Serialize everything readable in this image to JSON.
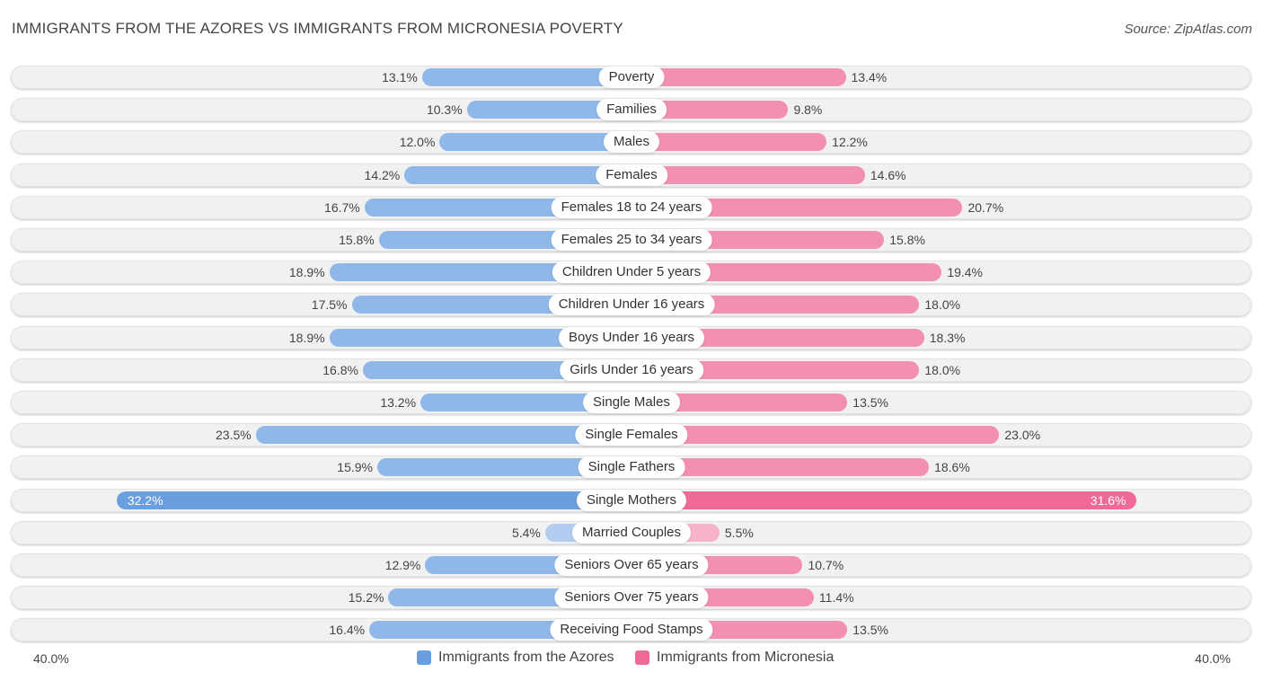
{
  "header": {
    "title": "IMMIGRANTS FROM THE AZORES VS IMMIGRANTS FROM MICRONESIA POVERTY",
    "source": "Source: ZipAtlas.com"
  },
  "axis": {
    "left_label": "40.0%",
    "right_label": "40.0%"
  },
  "legend": {
    "left": {
      "label": "Immigrants from the Azores",
      "color": "#6a9fdf"
    },
    "right": {
      "label": "Immigrants from Micronesia",
      "color": "#ef6b96"
    }
  },
  "chart_data": {
    "type": "bar",
    "orientation": "horizontal-diverging",
    "title": "IMMIGRANTS FROM THE AZORES VS IMMIGRANTS FROM MICRONESIA POVERTY",
    "xlim": [
      0,
      40
    ],
    "unit": "%",
    "categories": [
      "Poverty",
      "Families",
      "Males",
      "Females",
      "Females 18 to 24 years",
      "Females 25 to 34 years",
      "Children Under 5 years",
      "Children Under 16 years",
      "Boys Under 16 years",
      "Girls Under 16 years",
      "Single Males",
      "Single Females",
      "Single Fathers",
      "Single Mothers",
      "Married Couples",
      "Seniors Over 65 years",
      "Seniors Over 75 years",
      "Receiving Food Stamps"
    ],
    "series": [
      {
        "name": "Immigrants from the Azores",
        "color": "#6a9fdf",
        "values": [
          13.1,
          10.3,
          12.0,
          14.2,
          16.7,
          15.8,
          18.9,
          17.5,
          18.9,
          16.8,
          13.2,
          23.5,
          15.9,
          32.2,
          5.4,
          12.9,
          15.2,
          16.4
        ],
        "labels": [
          "13.1%",
          "10.3%",
          "12.0%",
          "14.2%",
          "16.7%",
          "15.8%",
          "18.9%",
          "17.5%",
          "18.9%",
          "16.8%",
          "13.2%",
          "23.5%",
          "15.9%",
          "32.2%",
          "5.4%",
          "12.9%",
          "15.2%",
          "16.4%"
        ]
      },
      {
        "name": "Immigrants from Micronesia",
        "color": "#ef6b96",
        "values": [
          13.4,
          9.8,
          12.2,
          14.6,
          20.7,
          15.8,
          19.4,
          18.0,
          18.3,
          18.0,
          13.5,
          23.0,
          18.6,
          31.6,
          5.5,
          10.7,
          11.4,
          13.5
        ],
        "labels": [
          "13.4%",
          "9.8%",
          "12.2%",
          "14.6%",
          "20.7%",
          "15.8%",
          "19.4%",
          "18.0%",
          "18.3%",
          "18.0%",
          "13.5%",
          "23.0%",
          "18.6%",
          "31.6%",
          "5.5%",
          "10.7%",
          "11.4%",
          "13.5%"
        ]
      }
    ]
  }
}
